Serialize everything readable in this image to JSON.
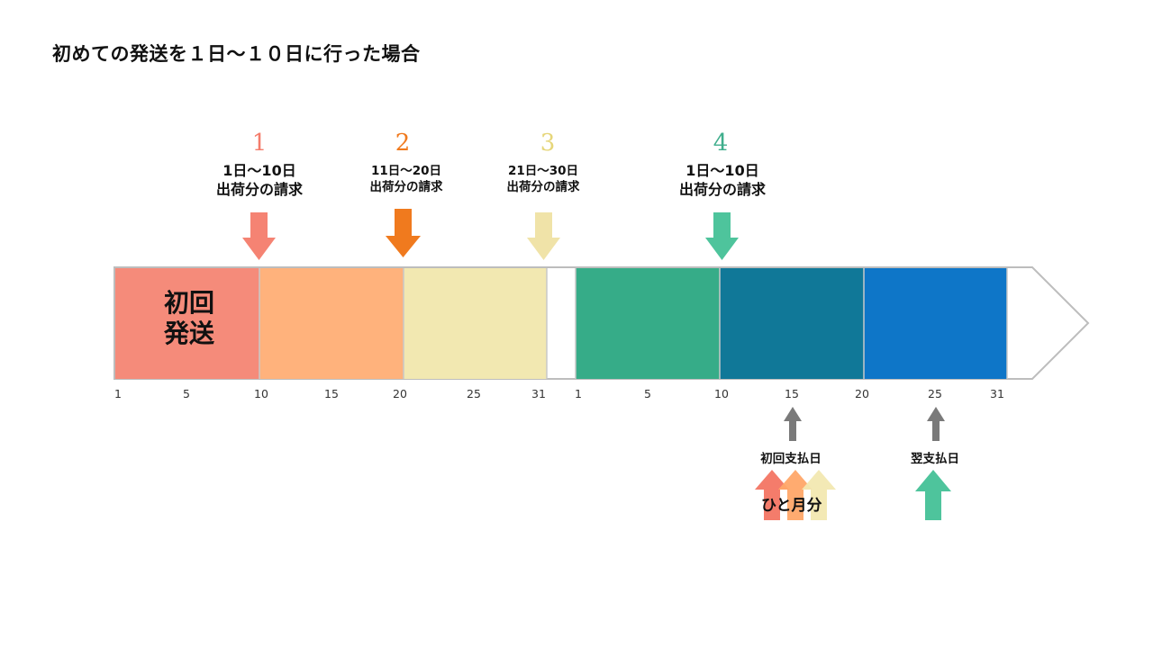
{
  "title": "初めての発送を１日～１０日に行った場合",
  "first_shipment": {
    "line1": "初回",
    "line2": "発送"
  },
  "billing": [
    {
      "num": "1",
      "range": "1日～10日",
      "desc": "出荷分の請求",
      "color": "#f47c6b"
    },
    {
      "num": "2",
      "range": "11日～20日",
      "desc": "出荷分の請求",
      "color": "#f07a1e"
    },
    {
      "num": "3",
      "range": "21日～30日",
      "desc": "出荷分の請求",
      "color": "#f0e3a8"
    },
    {
      "num": "4",
      "range": "1日～10日",
      "desc": "出荷分の請求",
      "color": "#4ec49c"
    }
  ],
  "segments": {
    "month1": [
      "#f58b7a",
      "#ffb27c",
      "#f2e8b1"
    ],
    "month2": [
      "#36ac88",
      "#107898",
      "#0e76c8"
    ]
  },
  "ticks": {
    "month1": [
      "1",
      "5",
      "10",
      "15",
      "20",
      "25",
      "31"
    ],
    "month2": [
      "1",
      "5",
      "10",
      "15",
      "20",
      "25",
      "31"
    ]
  },
  "payments": {
    "first": "初回支払日",
    "next": "翌支払日",
    "one_month": "ひと月分",
    "arrow_color": "#7a7a7a"
  }
}
